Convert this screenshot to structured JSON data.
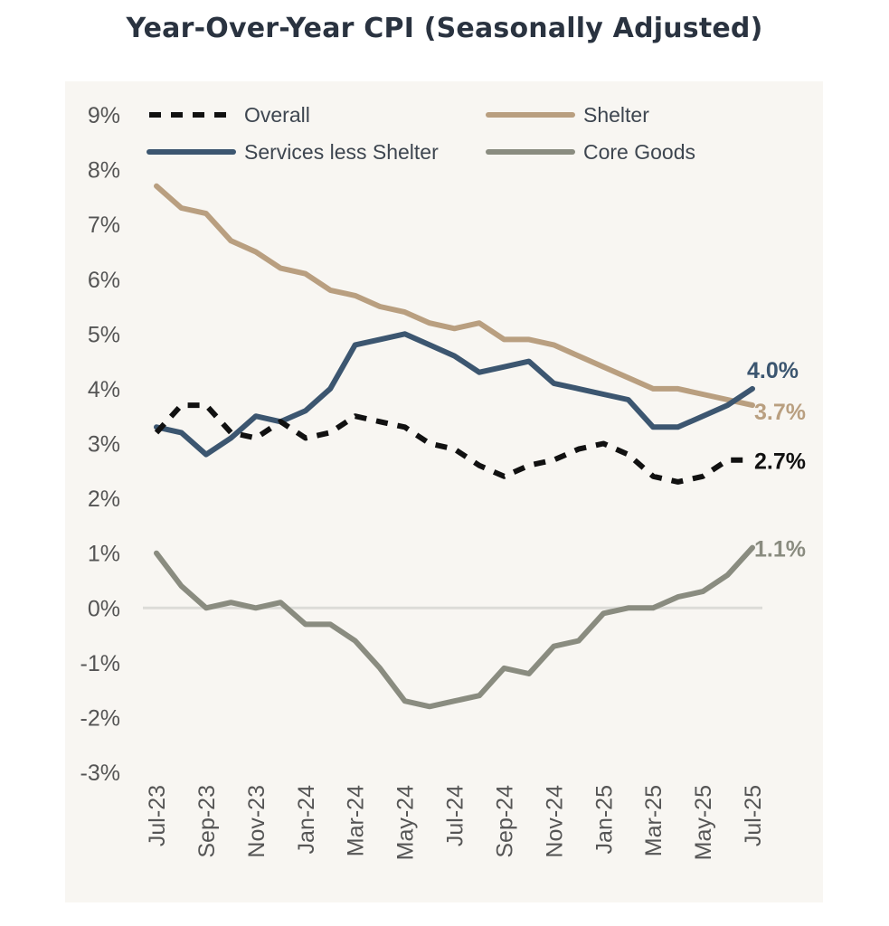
{
  "title": "Year-Over-Year CPI (Seasonally Adjusted)",
  "chart_data": {
    "type": "line",
    "title": "Year-Over-Year CPI (Seasonally Adjusted)",
    "xlabel": "",
    "ylabel": "",
    "ylim": [
      -3,
      9
    ],
    "y_ticks": [
      "9%",
      "8%",
      "7%",
      "6%",
      "5%",
      "4%",
      "3%",
      "2%",
      "1%",
      "0%",
      "-1%",
      "-2%",
      "-3%"
    ],
    "y_tick_values": [
      9,
      8,
      7,
      6,
      5,
      4,
      3,
      2,
      1,
      0,
      -1,
      -2,
      -3
    ],
    "x_ticks": [
      "Jul-23",
      "Sep-23",
      "Nov-23",
      "Jan-24",
      "Mar-24",
      "May-24",
      "Jul-24",
      "Sep-24",
      "Nov-24",
      "Jan-25",
      "Mar-25",
      "May-25",
      "Jul-25"
    ],
    "x": [
      "Jul-23",
      "Aug-23",
      "Sep-23",
      "Oct-23",
      "Nov-23",
      "Dec-23",
      "Jan-24",
      "Feb-24",
      "Mar-24",
      "Apr-24",
      "May-24",
      "Jun-24",
      "Jul-24",
      "Aug-24",
      "Sep-24",
      "Oct-24",
      "Nov-24",
      "Dec-24",
      "Jan-25",
      "Feb-25",
      "Mar-25",
      "Apr-25",
      "May-25",
      "Jun-25",
      "Jul-25"
    ],
    "grid": false,
    "zero_line": true,
    "legend_position": "top",
    "series": [
      {
        "name": "Overall",
        "color": "#111111",
        "dash": "dashed",
        "end_label": "2.7%",
        "values": [
          3.2,
          3.7,
          3.7,
          3.2,
          3.1,
          3.4,
          3.1,
          3.2,
          3.5,
          3.4,
          3.3,
          3.0,
          2.9,
          2.6,
          2.4,
          2.6,
          2.7,
          2.9,
          3.0,
          2.8,
          2.4,
          2.3,
          2.4,
          2.7,
          2.7
        ]
      },
      {
        "name": "Shelter",
        "color": "#b99f80",
        "dash": "solid",
        "end_label": "3.7%",
        "values": [
          7.7,
          7.3,
          7.2,
          6.7,
          6.5,
          6.2,
          6.1,
          5.8,
          5.7,
          5.5,
          5.4,
          5.2,
          5.1,
          5.2,
          4.9,
          4.9,
          4.8,
          4.6,
          4.4,
          4.2,
          4.0,
          4.0,
          3.9,
          3.8,
          3.7
        ]
      },
      {
        "name": "Services less Shelter",
        "color": "#3c5670",
        "dash": "solid",
        "end_label": "4.0%",
        "values": [
          3.3,
          3.2,
          2.8,
          3.1,
          3.5,
          3.4,
          3.6,
          4.0,
          4.8,
          4.9,
          5.0,
          4.8,
          4.6,
          4.3,
          4.4,
          4.5,
          4.1,
          4.0,
          3.9,
          3.8,
          3.3,
          3.3,
          3.5,
          3.7,
          4.0
        ]
      },
      {
        "name": "Core Goods",
        "color": "#8a8c80",
        "dash": "solid",
        "end_label": "1.1%",
        "values": [
          1.0,
          0.4,
          0.0,
          0.1,
          0.0,
          0.1,
          -0.3,
          -0.3,
          -0.6,
          -1.1,
          -1.7,
          -1.8,
          -1.7,
          -1.6,
          -1.1,
          -1.2,
          -0.7,
          -0.6,
          -0.1,
          0.0,
          0.0,
          0.2,
          0.3,
          0.6,
          1.1
        ]
      }
    ]
  }
}
